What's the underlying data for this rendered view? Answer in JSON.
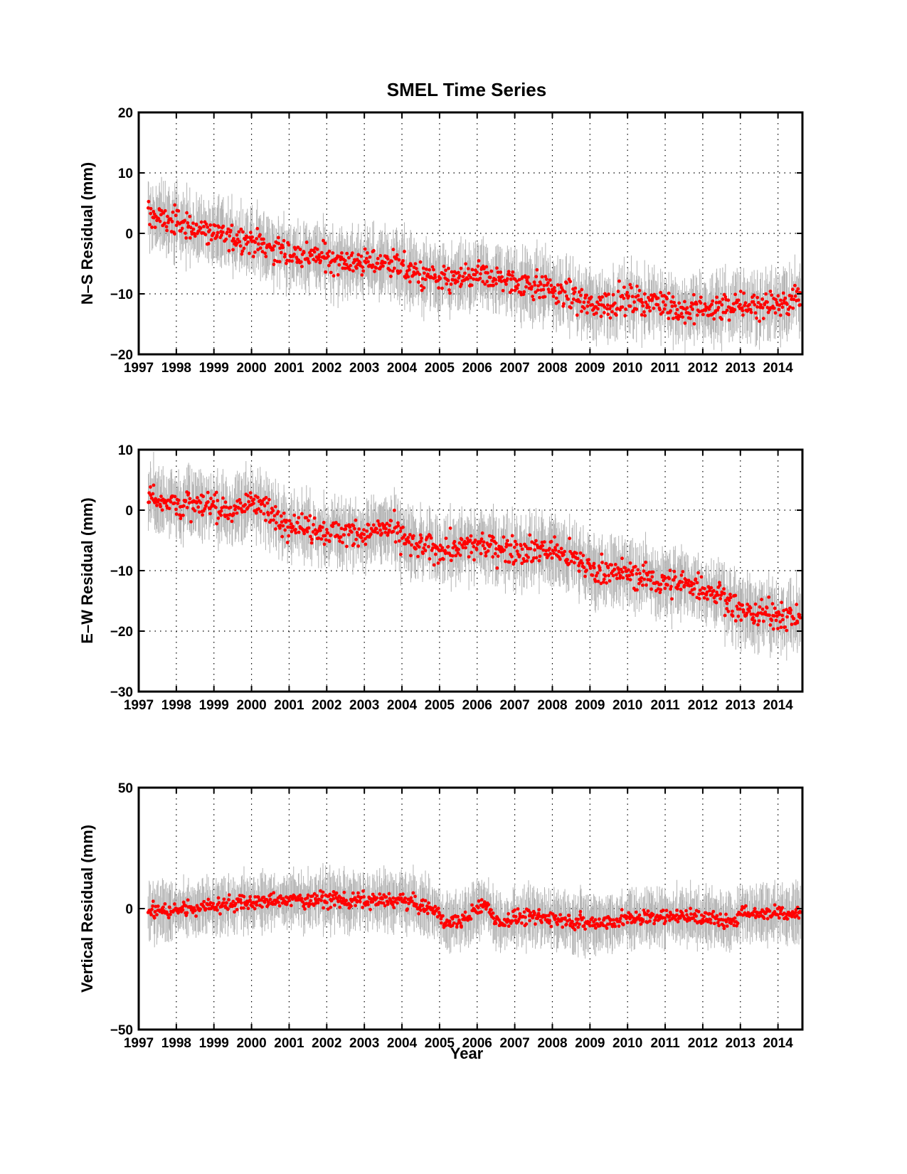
{
  "figure": {
    "title": "SMEL Time Series",
    "xlabel": "Year"
  },
  "chart_data": [
    {
      "type": "scatter",
      "title": "SMEL Time Series",
      "xlabel": "",
      "ylabel": "N–S Residual (mm)",
      "xlim": [
        1997,
        2014.65
      ],
      "ylim": [
        -20,
        20
      ],
      "xticks": [
        "1997",
        "1998",
        "1999",
        "2000",
        "2001",
        "2002",
        "2003",
        "2004",
        "2005",
        "2006",
        "2007",
        "2008",
        "2009",
        "2010",
        "2011",
        "2012",
        "2013",
        "2014"
      ],
      "yticks": [
        "20",
        "10",
        "0",
        "−10",
        "−20"
      ],
      "grid": true,
      "series": [
        {
          "kind": "error_bars",
          "color": "#b3b3b3",
          "x": [
            1997.3,
            1998.0,
            1999.0,
            2000.0,
            2001.0,
            2002.0,
            2003.0,
            2003.7,
            2004.3,
            2005.0,
            2006.0,
            2007.0,
            2007.6,
            2008.5,
            2009.0,
            2010.0,
            2011.0,
            2011.5,
            2012.0,
            2013.0,
            2014.0,
            2014.6
          ],
          "y": [
            3.0,
            1.8,
            0.0,
            -1.2,
            -3.5,
            -4.0,
            -5.0,
            -4.5,
            -6.5,
            -8.0,
            -7.0,
            -8.0,
            -8.5,
            -10.5,
            -12.0,
            -11.0,
            -11.5,
            -13.0,
            -12.5,
            -12.0,
            -11.5,
            -10.5
          ],
          "err": [
            4,
            4,
            4,
            4,
            4,
            4,
            4,
            4,
            4,
            4,
            4,
            4,
            4,
            4,
            4,
            4,
            4,
            4,
            4,
            4,
            4,
            4
          ]
        },
        {
          "kind": "points",
          "color": "#ff0000",
          "x": [
            1997.3,
            1998.0,
            1999.0,
            2000.0,
            2001.0,
            2002.0,
            2003.0,
            2003.7,
            2004.3,
            2005.0,
            2006.0,
            2007.0,
            2007.6,
            2008.5,
            2009.0,
            2010.0,
            2011.0,
            2011.5,
            2012.0,
            2013.0,
            2014.0,
            2014.6
          ],
          "y": [
            3.0,
            1.8,
            0.0,
            -1.2,
            -3.5,
            -4.0,
            -5.0,
            -4.5,
            -6.5,
            -8.0,
            -7.0,
            -8.0,
            -8.5,
            -10.5,
            -12.0,
            -11.0,
            -11.5,
            -13.0,
            -12.5,
            -12.0,
            -11.5,
            -10.5
          ]
        }
      ]
    },
    {
      "type": "scatter",
      "title": "",
      "xlabel": "",
      "ylabel": "E–W Residual (mm)",
      "xlim": [
        1997,
        2014.65
      ],
      "ylim": [
        -30,
        10
      ],
      "xticks": [
        "1997",
        "1998",
        "1999",
        "2000",
        "2001",
        "2002",
        "2003",
        "2004",
        "2005",
        "2006",
        "2007",
        "2008",
        "2009",
        "2010",
        "2011",
        "2012",
        "2013",
        "2014"
      ],
      "yticks": [
        "10",
        "0",
        "−10",
        "−20",
        "−30"
      ],
      "grid": true,
      "series": [
        {
          "kind": "error_bars",
          "color": "#b3b3b3",
          "x": [
            1997.3,
            1998.0,
            1999.0,
            1999.6,
            2000.1,
            2000.5,
            2001.0,
            2002.0,
            2003.0,
            2003.7,
            2004.3,
            2005.0,
            2006.0,
            2006.6,
            2007.0,
            2008.0,
            2008.5,
            2009.0,
            2010.0,
            2011.0,
            2011.8,
            2012.5,
            2013.0,
            2014.0,
            2014.6
          ],
          "y": [
            2.5,
            1.0,
            0.5,
            0.0,
            2.0,
            -1.0,
            -2.0,
            -3.5,
            -4.0,
            -3.0,
            -6.0,
            -6.5,
            -6.0,
            -6.0,
            -6.5,
            -6.5,
            -8.0,
            -9.5,
            -10.5,
            -12.0,
            -12.5,
            -14.0,
            -16.5,
            -17.5,
            -17.5
          ],
          "err": [
            4,
            4,
            4,
            4,
            4,
            4,
            4,
            4,
            4,
            4,
            4,
            4,
            4,
            4,
            4,
            4,
            4,
            4,
            4,
            4,
            4,
            4,
            4,
            4,
            4
          ]
        },
        {
          "kind": "points",
          "color": "#ff0000",
          "x": [
            1997.3,
            1998.0,
            1999.0,
            1999.6,
            2000.1,
            2000.5,
            2001.0,
            2002.0,
            2003.0,
            2003.7,
            2004.3,
            2005.0,
            2006.0,
            2006.6,
            2007.0,
            2008.0,
            2008.5,
            2009.0,
            2010.0,
            2011.0,
            2011.8,
            2012.5,
            2013.0,
            2014.0,
            2014.6
          ],
          "y": [
            2.5,
            1.0,
            0.5,
            0.0,
            2.0,
            -1.0,
            -2.0,
            -3.5,
            -4.0,
            -3.0,
            -6.0,
            -6.5,
            -6.0,
            -6.0,
            -6.5,
            -6.5,
            -8.0,
            -9.5,
            -10.5,
            -12.0,
            -12.5,
            -14.0,
            -16.5,
            -17.5,
            -17.5
          ]
        }
      ]
    },
    {
      "type": "scatter",
      "title": "",
      "xlabel": "Year",
      "ylabel": "Vertical Residual (mm)",
      "xlim": [
        1997,
        2014.65
      ],
      "ylim": [
        -50,
        50
      ],
      "xticks": [
        "1997",
        "1998",
        "1999",
        "2000",
        "2001",
        "2002",
        "2003",
        "2004",
        "2005",
        "2006",
        "2007",
        "2008",
        "2009",
        "2010",
        "2011",
        "2012",
        "2013",
        "2014"
      ],
      "yticks": [
        "50",
        "0",
        "−50"
      ],
      "grid": true,
      "series": [
        {
          "kind": "error_bars",
          "color": "#b3b3b3",
          "x": [
            1997.3,
            1998.0,
            1999.0,
            2000.0,
            2001.0,
            2002.0,
            2003.0,
            2004.0,
            2004.8,
            2005.2,
            2005.6,
            2006.2,
            2006.6,
            2007.0,
            2008.0,
            2009.0,
            2010.0,
            2011.0,
            2012.0,
            2012.7,
            2013.0,
            2014.0,
            2014.6
          ],
          "y": [
            -1.0,
            -0.5,
            1.5,
            2.5,
            3.5,
            4.0,
            3.0,
            3.5,
            0.0,
            -6.0,
            -5.0,
            2.0,
            -6.0,
            -3.5,
            -4.0,
            -6.0,
            -4.5,
            -3.0,
            -3.5,
            -6.0,
            -2.0,
            -1.5,
            -1.5
          ],
          "err": [
            9,
            9,
            9,
            9,
            9,
            9,
            9,
            9,
            9,
            9,
            9,
            9,
            9,
            9,
            9,
            9,
            9,
            9,
            9,
            9,
            9,
            9,
            9
          ]
        },
        {
          "kind": "points",
          "color": "#ff0000",
          "x": [
            1997.3,
            1998.0,
            1999.0,
            2000.0,
            2001.0,
            2002.0,
            2003.0,
            2004.0,
            2004.8,
            2005.2,
            2005.6,
            2006.2,
            2006.6,
            2007.0,
            2008.0,
            2009.0,
            2010.0,
            2011.0,
            2012.0,
            2012.7,
            2013.0,
            2014.0,
            2014.6
          ],
          "y": [
            -1.0,
            -0.5,
            1.5,
            2.5,
            3.5,
            4.0,
            3.0,
            3.5,
            0.0,
            -6.0,
            -5.0,
            2.0,
            -6.0,
            -3.5,
            -4.0,
            -6.0,
            -4.5,
            -3.0,
            -3.5,
            -6.0,
            -2.0,
            -1.5,
            -1.5
          ]
        }
      ]
    }
  ]
}
